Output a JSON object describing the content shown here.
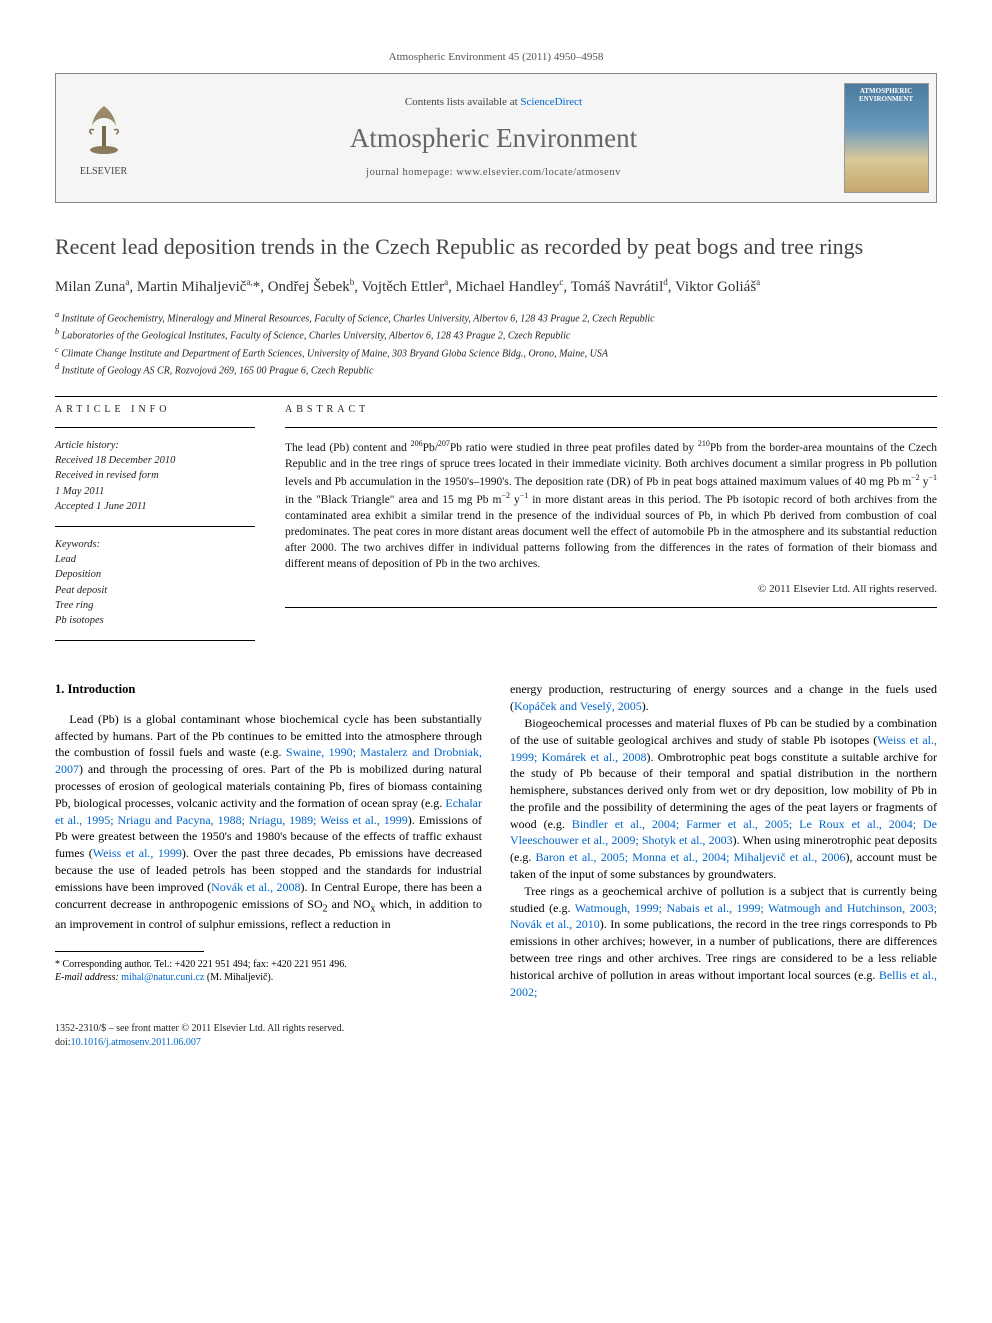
{
  "citation": "Atmospheric Environment 45 (2011) 4950–4958",
  "header": {
    "contents_prefix": "Contents lists available at ",
    "contents_link": "ScienceDirect",
    "journal": "Atmospheric Environment",
    "homepage_prefix": "journal homepage: ",
    "homepage_url": "www.elsevier.com/locate/atmosenv",
    "publisher_label": "ELSEVIER",
    "cover_title": "ATMOSPHERIC ENVIRONMENT"
  },
  "title": "Recent lead deposition trends in the Czech Republic as recorded by peat bogs and tree rings",
  "authors_html": "Milan Zuna<sup>a</sup>, Martin Mihaljevič<sup>a,</sup>*, Ondřej Šebek<sup>b</sup>, Vojtěch Ettler<sup>a</sup>, Michael Handley<sup>c</sup>, Tomáš Navrátil<sup>d</sup>, Viktor Goliáš<sup>a</sup>",
  "affiliations": [
    "<sup>a</sup> Institute of Geochemistry, Mineralogy and Mineral Resources, Faculty of Science, Charles University, Albertov 6, 128 43 Prague 2, Czech Republic",
    "<sup>b</sup> Laboratories of the Geological Institutes, Faculty of Science, Charles University, Albertov 6, 128 43 Prague 2, Czech Republic",
    "<sup>c</sup> Climate Change Institute and Department of Earth Sciences, University of Maine, 303 Bryand Globa Science Bldg., Orono, Maine, USA",
    "<sup>d</sup> Institute of Geology AS CR, Rozvojová 269, 165 00 Prague 6, Czech Republic"
  ],
  "article_info": {
    "heading": "ARTICLE INFO",
    "history_label": "Article history:",
    "history": [
      "Received 18 December 2010",
      "Received in revised form",
      "1 May 2011",
      "Accepted 1 June 2011"
    ],
    "keywords_label": "Keywords:",
    "keywords": [
      "Lead",
      "Deposition",
      "Peat deposit",
      "Tree ring",
      "Pb isotopes"
    ]
  },
  "abstract": {
    "heading": "ABSTRACT",
    "text_html": "The lead (Pb) content and <sup>206</sup>Pb/<sup>207</sup>Pb ratio were studied in three peat profiles dated by <sup>210</sup>Pb from the border-area mountains of the Czech Republic and in the tree rings of spruce trees located in their immediate vicinity. Both archives document a similar progress in Pb pollution levels and Pb accumulation in the 1950's–1990's. The deposition rate (DR) of Pb in peat bogs attained maximum values of 40 mg Pb m<sup>−2</sup> y<sup>−1</sup> in the \"Black Triangle\" area and 15 mg Pb m<sup>−2</sup> y<sup>−1</sup> in more distant areas in this period. The Pb isotopic record of both archives from the contaminated area exhibit a similar trend in the presence of the individual sources of Pb, in which Pb derived from combustion of coal predominates. The peat cores in more distant areas document well the effect of automobile Pb in the atmosphere and its substantial reduction after 2000. The two archives differ in individual patterns following from the differences in the rates of formation of their biomass and different means of deposition of Pb in the two archives.",
    "copyright": "© 2011 Elsevier Ltd. All rights reserved."
  },
  "body": {
    "section_number": "1.",
    "section_title": "Introduction",
    "para1_html": "Lead (Pb) is a global contaminant whose biochemical cycle has been substantially affected by humans. Part of the Pb continues to be emitted into the atmosphere through the combustion of fossil fuels and waste (e.g. <a class='ref' href='#'>Swaine, 1990; Mastalerz and Drobniak, 2007</a>) and through the processing of ores. Part of the Pb is mobilized during natural processes of erosion of geological materials containing Pb, fires of biomass containing Pb, biological processes, volcanic activity and the formation of ocean spray (e.g. <a class='ref' href='#'>Echalar et al., 1995; Nriagu and Pacyna, 1988; Nriagu, 1989; Weiss et al., 1999</a>). Emissions of Pb were greatest between the 1950's and 1980's because of the effects of traffic exhaust fumes (<a class='ref' href='#'>Weiss et al., 1999</a>). Over the past three decades, Pb emissions have decreased because the use of leaded petrols has been stopped and the standards for industrial emissions have been improved (<a class='ref' href='#'>Novák et al., 2008</a>). In Central Europe, there has been a concurrent decrease in anthropogenic emissions of SO<sub>2</sub> and NO<sub>x</sub> which, in addition to an improvement in control of sulphur emissions, reflect a reduction in",
    "col2_frag_html": "energy production, restructuring of energy sources and a change in the fuels used (<a class='ref' href='#'>Kopáček and Veselý, 2005</a>).",
    "para2_html": "Biogeochemical processes and material fluxes of Pb can be studied by a combination of the use of suitable geological archives and study of stable Pb isotopes (<a class='ref' href='#'>Weiss et al., 1999; Komárek et al., 2008</a>). Ombrotrophic peat bogs constitute a suitable archive for the study of Pb because of their temporal and spatial distribution in the northern hemisphere, substances derived only from wet or dry deposition, low mobility of Pb in the profile and the possibility of determining the ages of the peat layers or fragments of wood (e.g. <a class='ref' href='#'>Bindler et al., 2004; Farmer et al., 2005; Le Roux et al., 2004; De Vleeschouwer et al., 2009; Shotyk et al., 2003</a>). When using minerotrophic peat deposits (e.g. <a class='ref' href='#'>Baron et al., 2005; Monna et al., 2004; Mihaljevič et al., 2006</a>), account must be taken of the input of some substances by groundwaters.",
    "para3_html": "Tree rings as a geochemical archive of pollution is a subject that is currently being studied (e.g. <a class='ref' href='#'>Watmough, 1999; Nabais et al., 1999; Watmough and Hutchinson, 2003; Novák et al., 2010</a>). In some publications, the record in the tree rings corresponds to Pb emissions in other archives; however, in a number of publications, there are differences between tree rings and other archives. Tree rings are considered to be a less reliable historical archive of pollution in areas without important local sources (e.g. <a class='ref' href='#'>Bellis et al., 2002;</a>"
  },
  "footnote": {
    "corr_html": "* Corresponding author. Tel.: +420 221 951 494; fax: +420 221 951 496.",
    "email_label": "E-mail address:",
    "email": "mihal@natur.cuni.cz",
    "email_name": "(M. Mihaljevič)."
  },
  "bottom": {
    "line1": "1352-2310/$ – see front matter © 2011 Elsevier Ltd. All rights reserved.",
    "doi_label": "doi:",
    "doi": "10.1016/j.atmosenv.2011.06.007"
  },
  "colors": {
    "link": "#0066cc",
    "text": "#000000",
    "muted": "#555555",
    "border": "#888888",
    "header_bg": "#f5f5f5"
  }
}
